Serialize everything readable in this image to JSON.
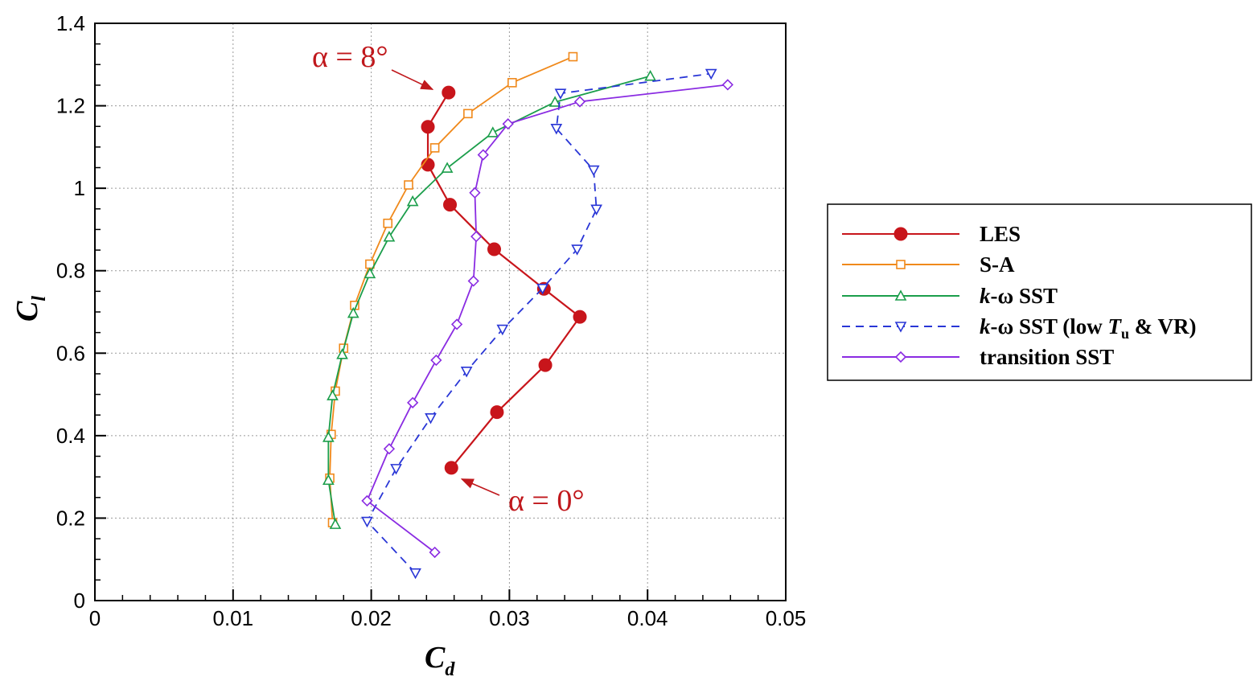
{
  "chart_data": {
    "type": "line",
    "xlabel": "C",
    "xlabel_sub": "d",
    "ylabel": "C",
    "ylabel_sub": "l",
    "xlim": [
      0,
      0.05
    ],
    "ylim": [
      0,
      1.4
    ],
    "xticks": [
      0,
      0.01,
      0.02,
      0.03,
      0.04,
      0.05
    ],
    "xtick_labels": [
      "0",
      "0.01",
      "0.02",
      "0.03",
      "0.04",
      "0.05"
    ],
    "yticks": [
      0,
      0.2,
      0.4,
      0.6,
      0.8,
      1.0,
      1.2,
      1.4
    ],
    "ytick_labels": [
      "0",
      "0.2",
      "0.4",
      "0.6",
      "0.8",
      "1",
      "1.2",
      "1.4"
    ],
    "grid": true,
    "legend_position": "right",
    "series": [
      {
        "name": "LES",
        "color": "#c8151b",
        "marker": "circle-filled",
        "dash": "solid",
        "points": [
          [
            0.0258,
            0.322
          ],
          [
            0.0291,
            0.457
          ],
          [
            0.0326,
            0.571
          ],
          [
            0.0351,
            0.688
          ],
          [
            0.0325,
            0.756
          ],
          [
            0.0289,
            0.852
          ],
          [
            0.0257,
            0.96
          ],
          [
            0.0241,
            1.057
          ],
          [
            0.0241,
            1.149
          ],
          [
            0.0256,
            1.232
          ]
        ]
      },
      {
        "name": "S-A",
        "color": "#f0891b",
        "marker": "square",
        "dash": "solid",
        "points": [
          [
            0.0172,
            0.189
          ],
          [
            0.017,
            0.297
          ],
          [
            0.0171,
            0.403
          ],
          [
            0.0174,
            0.508
          ],
          [
            0.018,
            0.612
          ],
          [
            0.0188,
            0.716
          ],
          [
            0.0199,
            0.816
          ],
          [
            0.0212,
            0.915
          ],
          [
            0.0227,
            1.008
          ],
          [
            0.0246,
            1.098
          ],
          [
            0.027,
            1.181
          ],
          [
            0.0302,
            1.256
          ],
          [
            0.0346,
            1.319
          ]
        ]
      },
      {
        "name": "k-ω SST",
        "color": "#1b9e4b",
        "marker": "triangle-up",
        "dash": "solid",
        "points": [
          [
            0.0174,
            0.185
          ],
          [
            0.0169,
            0.292
          ],
          [
            0.0169,
            0.396
          ],
          [
            0.0172,
            0.497
          ],
          [
            0.0179,
            0.597
          ],
          [
            0.0187,
            0.697
          ],
          [
            0.0199,
            0.793
          ],
          [
            0.0213,
            0.882
          ],
          [
            0.023,
            0.968
          ],
          [
            0.0255,
            1.049
          ],
          [
            0.0288,
            1.135
          ],
          [
            0.0333,
            1.209
          ],
          [
            0.0402,
            1.272
          ]
        ]
      },
      {
        "name": "k-ω SST (low T_u & VR)",
        "color": "#2936d6",
        "marker": "triangle-down",
        "dash": "dashed",
        "points": [
          [
            0.0232,
            0.067
          ],
          [
            0.0197,
            0.192
          ],
          [
            0.0218,
            0.32
          ],
          [
            0.0243,
            0.443
          ],
          [
            0.0269,
            0.556
          ],
          [
            0.0295,
            0.658
          ],
          [
            0.0324,
            0.757
          ],
          [
            0.0349,
            0.852
          ],
          [
            0.0363,
            0.949
          ],
          [
            0.0361,
            1.044
          ],
          [
            0.0334,
            1.145
          ],
          [
            0.0337,
            1.23
          ],
          [
            0.0446,
            1.278
          ]
        ]
      },
      {
        "name": "transition SST",
        "color": "#8a2be2",
        "marker": "diamond",
        "dash": "solid",
        "points": [
          [
            0.0246,
            0.117
          ],
          [
            0.0197,
            0.242
          ],
          [
            0.0213,
            0.368
          ],
          [
            0.023,
            0.48
          ],
          [
            0.0247,
            0.583
          ],
          [
            0.0262,
            0.67
          ],
          [
            0.0274,
            0.775
          ],
          [
            0.0276,
            0.883
          ],
          [
            0.0275,
            0.989
          ],
          [
            0.0281,
            1.081
          ],
          [
            0.0299,
            1.156
          ],
          [
            0.0351,
            1.21
          ],
          [
            0.0458,
            1.251
          ]
        ]
      }
    ],
    "annotations": [
      {
        "text": "α = 8°",
        "target": [
          0.0256,
          1.232
        ]
      },
      {
        "text": "α = 0°",
        "target": [
          0.0258,
          0.322
        ]
      }
    ]
  },
  "legend": {
    "items": [
      {
        "main": "LES"
      },
      {
        "main": "S-A"
      },
      {
        "main": "k-ω SST",
        "italic_prefix": "k"
      },
      {
        "main": "k-ω SST (low T_u & VR)",
        "italic_prefix": "k",
        "parts": [
          "-ω SST (low ",
          "T",
          "u",
          " & VR)"
        ]
      },
      {
        "main": "transition SST"
      }
    ]
  }
}
